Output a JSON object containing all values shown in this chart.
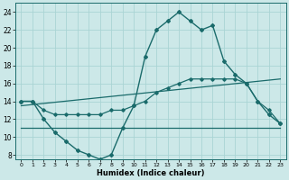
{
  "xlabel": "Humidex (Indice chaleur)",
  "ylabel": "",
  "xlim": [
    -0.5,
    23.5
  ],
  "ylim": [
    7.5,
    25
  ],
  "yticks": [
    8,
    10,
    12,
    14,
    16,
    18,
    20,
    22,
    24
  ],
  "xticks": [
    0,
    1,
    2,
    3,
    4,
    5,
    6,
    7,
    8,
    9,
    10,
    11,
    12,
    13,
    14,
    15,
    16,
    17,
    18,
    19,
    20,
    21,
    22,
    23
  ],
  "background_color": "#cce8e8",
  "grid_color": "#aad4d4",
  "line_color": "#1a6b6b",
  "line1_x": [
    0,
    1,
    2,
    3,
    4,
    5,
    6,
    7,
    8,
    9,
    10,
    11,
    12,
    13,
    14,
    15,
    16,
    17,
    18,
    19,
    20,
    21,
    22,
    23
  ],
  "line1_y": [
    14,
    14,
    12,
    10.5,
    9.5,
    8.5,
    8,
    7.5,
    8,
    11,
    13.5,
    19,
    22,
    23,
    24,
    23,
    22,
    22.5,
    18.5,
    17,
    16,
    14,
    12.5,
    11.5
  ],
  "line2_x": [
    0,
    1,
    2,
    3,
    4,
    5,
    6,
    7,
    8,
    9,
    10,
    11,
    12,
    13,
    14,
    15,
    16,
    17,
    18,
    19,
    20,
    21,
    22,
    23
  ],
  "line2_y": [
    14,
    14,
    13,
    12.5,
    12.5,
    12.5,
    12.5,
    12.5,
    13,
    13,
    13.5,
    14,
    15,
    15.5,
    16,
    16.5,
    16.5,
    16.5,
    16.5,
    16.5,
    16,
    14,
    13,
    11.5
  ],
  "line3_x": [
    0,
    23
  ],
  "line3_y": [
    13.5,
    16.5
  ],
  "line4_x": [
    0,
    23
  ],
  "line4_y": [
    11,
    11
  ]
}
